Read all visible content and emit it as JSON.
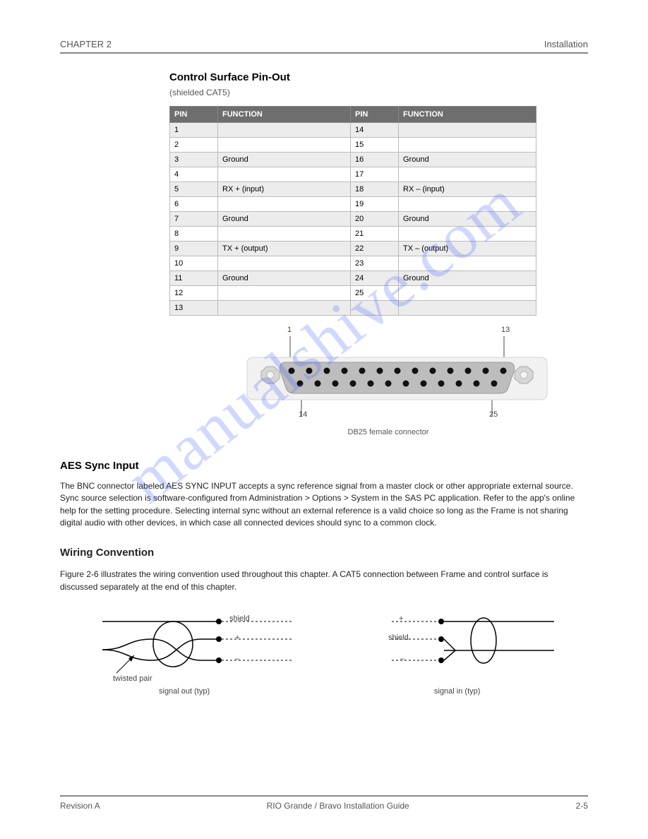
{
  "header": {
    "left": "CHAPTER 2",
    "right": "Installation"
  },
  "section1": {
    "title": "Control Surface Pin-Out",
    "subtitle": "(shielded CAT5)"
  },
  "table": {
    "columns": [
      "PIN",
      "FUNCTION",
      "PIN",
      "FUNCTION"
    ],
    "rows": [
      [
        "1",
        "",
        "14",
        ""
      ],
      [
        "2",
        "",
        "15",
        ""
      ],
      [
        "3",
        "Ground",
        "16",
        "Ground"
      ],
      [
        "4",
        "",
        "17",
        ""
      ],
      [
        "5",
        "RX +  (input)",
        "18",
        "RX –  (input)"
      ],
      [
        "6",
        "",
        "19",
        ""
      ],
      [
        "7",
        "Ground",
        "20",
        "Ground"
      ],
      [
        "8",
        "",
        "21",
        ""
      ],
      [
        "9",
        "TX +  (output)",
        "22",
        "TX –  (output)"
      ],
      [
        "10",
        "",
        "23",
        ""
      ],
      [
        "11",
        "Ground",
        "24",
        "Ground"
      ],
      [
        "12",
        "",
        "25",
        ""
      ],
      [
        "13",
        "",
        "",
        ""
      ]
    ],
    "shaded_rows": [
      0,
      2,
      4,
      6,
      8,
      10,
      12
    ]
  },
  "connector": {
    "labels": {
      "p1": "1",
      "p13": "13",
      "p14": "14",
      "p25": "25"
    },
    "caption": "DB25 female connector"
  },
  "aes": {
    "title": "AES Sync Input",
    "body": "The BNC connector labeled AES SYNC INPUT accepts a sync reference signal from a master clock or other appropriate external source. Sync source selection is software-configured from Administration > Options > System in the SAS PC application. Refer to the app's online help for the setting procedure. Selecting internal sync without an external reference is a valid choice so long as the Frame is not sharing digital audio with other devices, in which case all connected devices should sync to a common clock."
  },
  "wiring": {
    "title": "Wiring Convention",
    "body": "Figure 2-6 illustrates the wiring convention used throughout this chapter. A CAT5 connection between Frame and control surface is discussed separately at the end of this chapter.",
    "labels": {
      "shield": "shield",
      "plus": "+",
      "minus": "–",
      "twisted": "twisted pair",
      "out": "signal out (typ)",
      "inp": "signal in (typ)",
      "right_plus": "+",
      "right_shield": "shield",
      "right_minus": "–"
    }
  },
  "footer": {
    "left": "Revision A",
    "center": "RIO Grande / Bravo Installation Guide",
    "right": "2-5"
  },
  "watermark": "manualshive.com",
  "connector_svg": {
    "shell_fill": "#e9e9e9",
    "shell_stroke": "#c9c9c9",
    "inner_fill": "#bdbdbd",
    "pin_color": "#111",
    "hex_fill": "#d6d6d6",
    "hex_stroke": "#aaa"
  }
}
